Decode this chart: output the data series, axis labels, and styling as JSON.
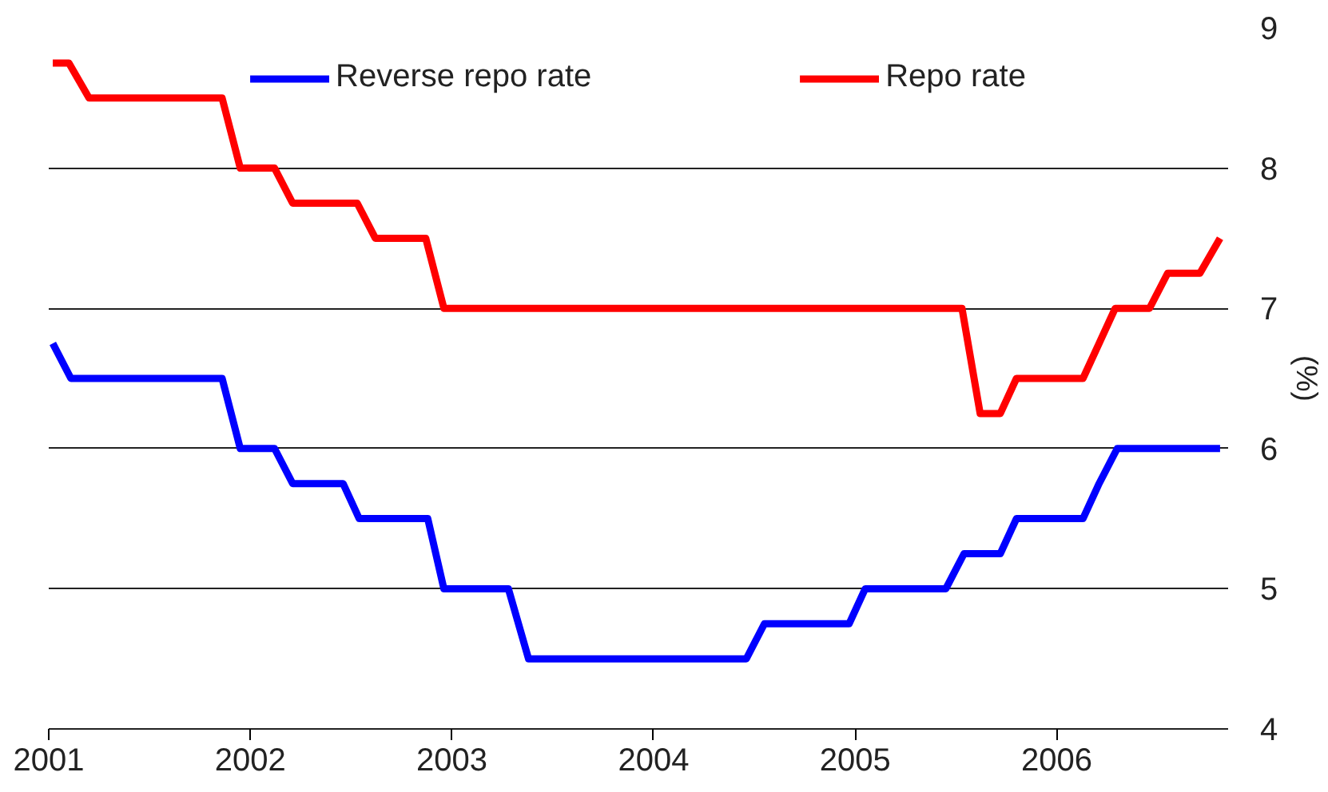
{
  "chart_data": {
    "type": "line",
    "ylabel": "(%)",
    "x": [
      2001.02,
      2001.1,
      2001.2,
      2001.86,
      2001.95,
      2002.12,
      2002.21,
      2002.53,
      2002.62,
      2002.87,
      2002.96,
      2005.53,
      2005.62,
      2005.72,
      2005.8,
      2006.13,
      2006.21,
      2006.29,
      2006.46,
      2006.55,
      2006.71,
      2006.81
    ],
    "series": [
      {
        "name": "Reverse repo rate",
        "color": "#0000ff",
        "x": [
          2001.02,
          2001.11,
          2001.86,
          2001.95,
          2002.12,
          2002.21,
          2002.46,
          2002.54,
          2002.88,
          2002.96,
          2003.28,
          2003.38,
          2004.46,
          2004.55,
          2004.97,
          2005.05,
          2005.45,
          2005.54,
          2005.72,
          2005.8,
          2006.13,
          2006.21,
          2006.3,
          2006.81
        ],
        "values": [
          6.75,
          6.5,
          6.5,
          6.0,
          6.0,
          5.75,
          5.75,
          5.5,
          5.5,
          5.0,
          5.0,
          4.5,
          4.5,
          4.75,
          4.75,
          5.0,
          5.0,
          5.25,
          5.25,
          5.5,
          5.5,
          5.75,
          6.0,
          6.0
        ]
      },
      {
        "name": "Repo rate",
        "color": "#ff0000",
        "values": [
          8.75,
          8.75,
          8.5,
          8.5,
          8.0,
          8.0,
          7.75,
          7.75,
          7.5,
          7.5,
          7.0,
          7.0,
          6.25,
          6.25,
          6.5,
          6.5,
          6.75,
          7.0,
          7.0,
          7.25,
          7.25,
          7.5
        ]
      }
    ],
    "xlim": [
      2001,
      2006.85
    ],
    "xticks": [
      2001,
      2002,
      2003,
      2004,
      2005,
      2006
    ],
    "ylim": [
      4,
      9
    ],
    "yticks": [
      4,
      5,
      6,
      7,
      8,
      9
    ],
    "grid": "y",
    "legend": "top",
    "marker": "none",
    "line_style": "solid"
  }
}
